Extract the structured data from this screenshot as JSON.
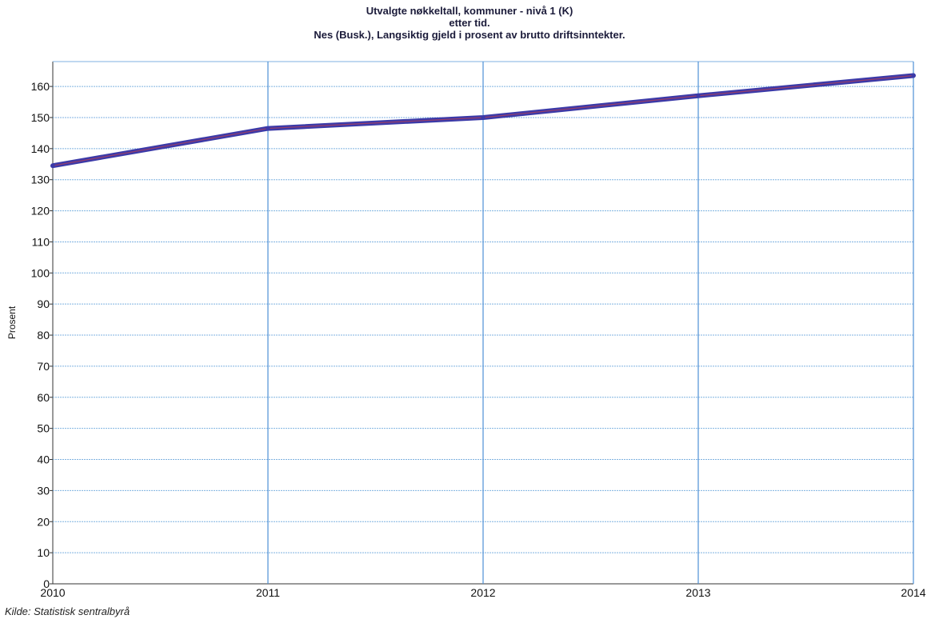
{
  "chart_data": {
    "type": "line",
    "title_lines": [
      "Utvalgte nøkkeltall, kommuner - nivå 1 (K)",
      "etter tid.",
      "Nes (Busk.), Langsiktig gjeld i prosent av brutto driftsinntekter."
    ],
    "ylabel": "Prosent",
    "xlabel": "",
    "categories": [
      "2010",
      "2011",
      "2012",
      "2013",
      "2014"
    ],
    "series": [
      {
        "values": [
          134.5,
          146.5,
          150,
          157,
          163.5
        ],
        "color": "#3c3aa8"
      }
    ],
    "ylim": [
      0,
      168
    ],
    "yticks": [
      0,
      10,
      20,
      30,
      40,
      50,
      60,
      70,
      80,
      90,
      100,
      110,
      120,
      130,
      140,
      150,
      160
    ],
    "grid": true,
    "gridline_color": "#7fb2e0"
  },
  "footer": {
    "source": "Kilde: Statistisk sentralbyrå"
  }
}
